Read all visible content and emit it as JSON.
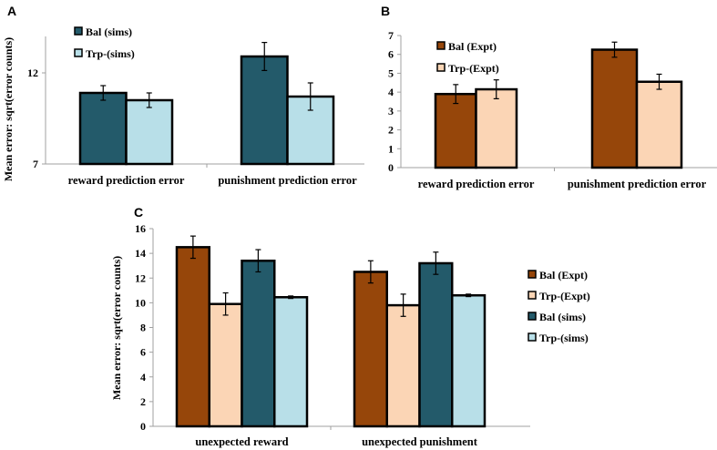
{
  "chart_data": [
    {
      "panel": "A",
      "type": "bar",
      "ylabel": "Mean error: sqrt(error counts)",
      "categories": [
        "reward prediction error",
        "punishment prediction error"
      ],
      "ylim": [
        7,
        14
      ],
      "yticks": [
        "7",
        "12"
      ],
      "ytick_values": [
        7,
        12
      ],
      "legend_position": "top-left",
      "series": [
        {
          "name": "Bal (sims)",
          "color": "#235a6a",
          "values": [
            10.9,
            12.9
          ],
          "errors": [
            0.4,
            0.77
          ]
        },
        {
          "name": "Trp-(sims)",
          "color": "#b8dfe8",
          "values": [
            10.5,
            10.7
          ],
          "errors": [
            0.4,
            0.75
          ]
        }
      ]
    },
    {
      "panel": "B",
      "type": "bar",
      "ylabel": "",
      "categories": [
        "reward prediction error",
        "punishment prediction error"
      ],
      "ylim": [
        0,
        7
      ],
      "yticks": [
        "0",
        "1",
        "2",
        "3",
        "4",
        "5",
        "6",
        "7"
      ],
      "ytick_values": [
        0,
        1,
        2,
        3,
        4,
        5,
        6,
        7
      ],
      "legend_position": "top-left",
      "series": [
        {
          "name": "Bal (Expt)",
          "color": "#96460a",
          "values": [
            3.9,
            6.25
          ],
          "errors": [
            0.5,
            0.4
          ]
        },
        {
          "name": "Trp-(Expt)",
          "color": "#fbd5b5",
          "values": [
            4.15,
            4.55
          ],
          "errors": [
            0.5,
            0.4
          ]
        }
      ]
    },
    {
      "panel": "C",
      "type": "bar",
      "ylabel": "Mean error: sqrt(error counts)",
      "categories": [
        "unexpected reward",
        "unexpected punishment"
      ],
      "ylim": [
        0,
        16
      ],
      "yticks": [
        "0",
        "2",
        "4",
        "6",
        "8",
        "10",
        "12",
        "14",
        "16"
      ],
      "ytick_values": [
        0,
        2,
        4,
        6,
        8,
        10,
        12,
        14,
        16
      ],
      "legend_position": "right",
      "series": [
        {
          "name": "Bal (Expt)",
          "color": "#96460a",
          "values": [
            14.5,
            12.5
          ],
          "errors": [
            0.9,
            0.9
          ]
        },
        {
          "name": "Trp-(Expt)",
          "color": "#fbd5b5",
          "values": [
            9.9,
            9.8
          ],
          "errors": [
            0.9,
            0.9
          ]
        },
        {
          "name": "Bal (sims)",
          "color": "#235a6a",
          "values": [
            13.4,
            13.2
          ],
          "errors": [
            0.9,
            0.9
          ]
        },
        {
          "name": "Trp-(sims)",
          "color": "#b8dfe8",
          "values": [
            10.45,
            10.6
          ],
          "errors": [
            0.1,
            0.1
          ]
        }
      ]
    }
  ]
}
